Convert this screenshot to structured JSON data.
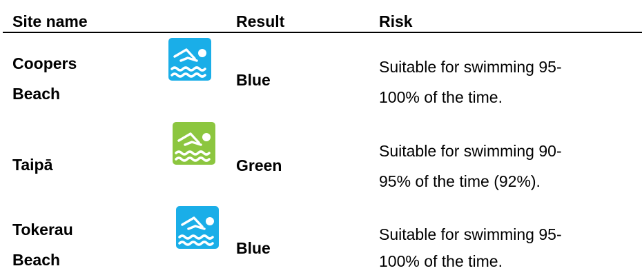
{
  "headers": {
    "site_name": "Site name",
    "result": "Result",
    "risk": "Risk"
  },
  "rows": [
    {
      "site_line1": "Coopers",
      "site_line2": "Beach",
      "icon": "swimming-icon",
      "icon_color": "#1aaee8",
      "result": "Blue",
      "risk_line1": "Suitable for swimming 95-",
      "risk_line2": "100% of the time."
    },
    {
      "site_line1": "Taipā",
      "icon": "swimming-icon",
      "icon_color": "#8cc63f",
      "result": "Green",
      "risk_line1": "Suitable for swimming 90-",
      "risk_line2": "95% of the time (92%)."
    },
    {
      "site_line1": "Tokerau",
      "site_line2": "Beach",
      "icon": "swimming-icon",
      "icon_color": "#1aaee8",
      "result": "Blue",
      "risk_line1": "Suitable for swimming 95-",
      "risk_line2": "100% of the time."
    }
  ]
}
